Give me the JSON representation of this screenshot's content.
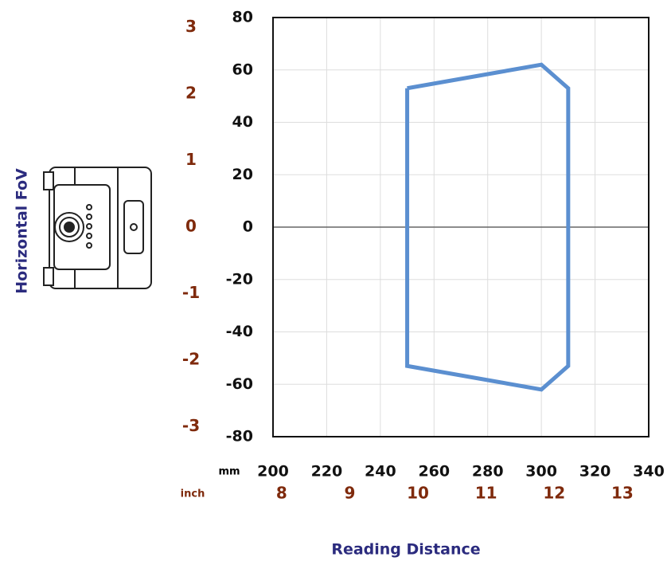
{
  "chart_data": {
    "type": "line",
    "x_label": "Reading Distance",
    "y_label": "Horizontal FoV",
    "x_unit": "mm",
    "x2_unit": "inch",
    "xlim": [
      200,
      340
    ],
    "xticks": [
      200,
      220,
      240,
      260,
      280,
      300,
      320,
      340
    ],
    "ylim": [
      -80,
      80
    ],
    "yticks": [
      -80,
      -60,
      -40,
      -20,
      0,
      20,
      40,
      60,
      80
    ],
    "x2lim": [
      7.874,
      13.386
    ],
    "x2ticks": [
      8,
      9,
      10,
      11,
      12,
      13
    ],
    "y2lim": [
      -3.15,
      3.15
    ],
    "y2ticks": [
      -3,
      -2,
      -1,
      0,
      1,
      2,
      3
    ],
    "grid": true,
    "series": [
      {
        "color": "#5b8fd0",
        "x": [
          250,
          300,
          310,
          310,
          300,
          250,
          250
        ],
        "values": [
          53,
          62,
          53,
          -53,
          -62,
          -53,
          53
        ]
      }
    ]
  }
}
